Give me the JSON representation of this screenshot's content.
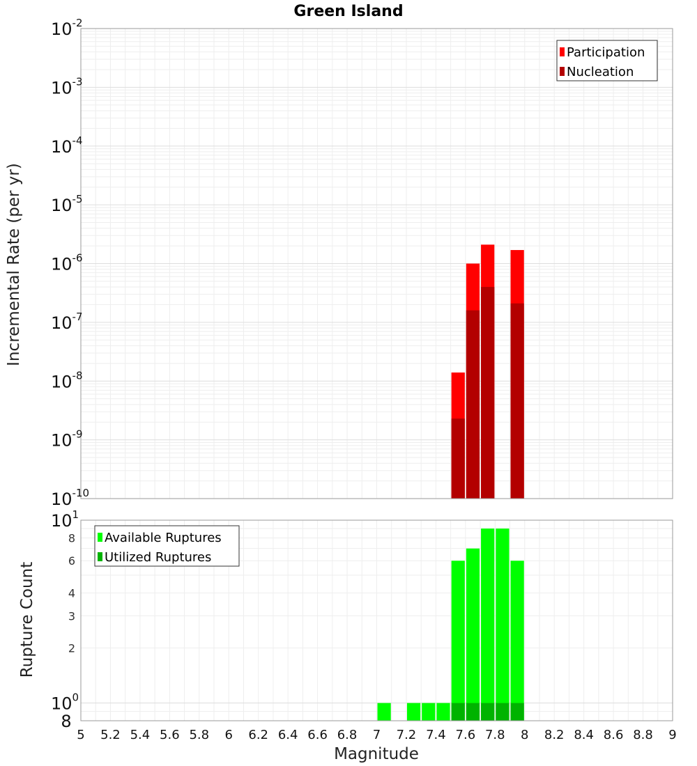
{
  "chart_data": [
    {
      "type": "bar",
      "title": "Green Island",
      "ylabel": "Incremental Rate (per yr)",
      "xlabel": "",
      "yscale": "log",
      "ylim": [
        1e-10,
        0.01
      ],
      "xlim": [
        5,
        9
      ],
      "bar_width": 0.1,
      "x": [
        7.55,
        7.65,
        7.75,
        7.95
      ],
      "series": [
        {
          "name": "Participation",
          "color": "#ff0000",
          "values": [
            1.4e-08,
            1e-06,
            2.1e-06,
            1.7e-06
          ]
        },
        {
          "name": "Nucleation",
          "color": "#b30000",
          "values": [
            2.3e-09,
            1.6e-07,
            4e-07,
            2.1e-07
          ]
        }
      ],
      "legend_position": "top-right",
      "grid": true
    },
    {
      "type": "bar",
      "title": "",
      "ylabel": "Rupture Count",
      "xlabel": "Magnitude",
      "yscale": "log",
      "ylim": [
        0.8,
        10
      ],
      "xlim": [
        5,
        9
      ],
      "bar_width": 0.1,
      "x": [
        7.05,
        7.25,
        7.35,
        7.45,
        7.55,
        7.65,
        7.75,
        7.85,
        7.95
      ],
      "series": [
        {
          "name": "Available Ruptures",
          "color": "#00ff00",
          "values": [
            1,
            1,
            1,
            1,
            6,
            7,
            9,
            9,
            6
          ]
        },
        {
          "name": "Utilized Ruptures",
          "color": "#00b300",
          "values": [
            0,
            0,
            0,
            0,
            1,
            1,
            1,
            1,
            1
          ]
        }
      ],
      "legend_position": "top-left",
      "grid": true
    }
  ],
  "axis": {
    "x_ticks": [
      "5",
      "5.2",
      "5.4",
      "5.6",
      "5.8",
      "6",
      "6.2",
      "6.4",
      "6.6",
      "6.8",
      "7",
      "7.2",
      "7.4",
      "7.6",
      "7.8",
      "8",
      "8.2",
      "8.4",
      "8.6",
      "8.8",
      "9"
    ],
    "top_y_ticks": [
      {
        "base": "10",
        "exp": "-2"
      },
      {
        "base": "10",
        "exp": "-3"
      },
      {
        "base": "10",
        "exp": "-4"
      },
      {
        "base": "10",
        "exp": "-5"
      },
      {
        "base": "10",
        "exp": "-6"
      },
      {
        "base": "10",
        "exp": "-7"
      },
      {
        "base": "10",
        "exp": "-8"
      },
      {
        "base": "10",
        "exp": "-9"
      },
      {
        "base": "10",
        "exp": "-10"
      }
    ],
    "bottom_y_major": [
      {
        "base": "10",
        "exp": "1"
      },
      {
        "base": "10",
        "exp": "0"
      }
    ],
    "bottom_y_minor": [
      "8",
      "6",
      "4",
      "3",
      "2"
    ],
    "bottom_y_edge": "8"
  }
}
